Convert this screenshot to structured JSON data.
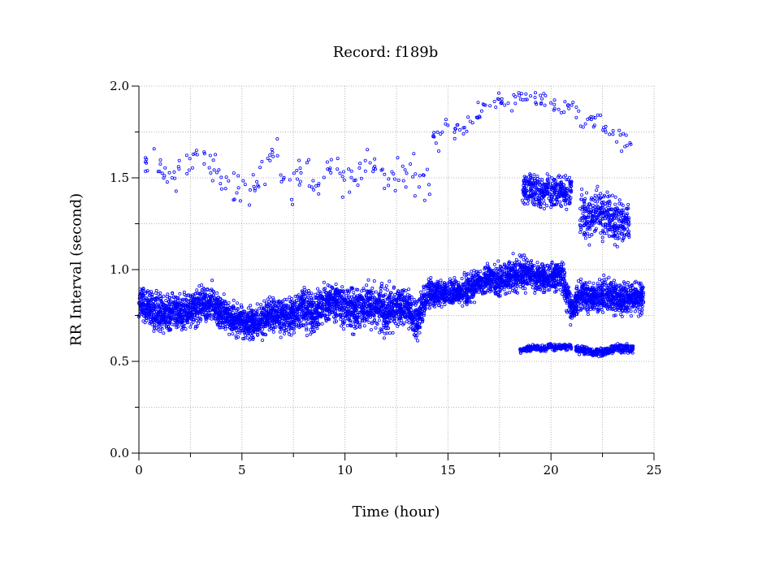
{
  "chart_data": {
    "type": "scatter",
    "title": "Record:  f189b",
    "xlabel": "Time (hour)",
    "ylabel": "RR Interval (second)",
    "xlim": [
      0,
      25
    ],
    "ylim": [
      0.0,
      2.0
    ],
    "x_ticks": [
      0,
      5,
      10,
      15,
      20,
      25
    ],
    "x_tick_labels": [
      "0",
      "5",
      "10",
      "15",
      "20",
      "25"
    ],
    "y_ticks": [
      0.0,
      0.5,
      1.0,
      1.5,
      2.0
    ],
    "y_tick_labels": [
      "0.0",
      "0.5",
      "1.0",
      "1.5",
      "2.0"
    ],
    "grid": true,
    "marker_color": "#0000ff",
    "series": [
      {
        "x": [
          0.0,
          0.5,
          1.0,
          1.5,
          2.0,
          2.5,
          3.0,
          3.5,
          4.0,
          4.5,
          5.0,
          5.5,
          6.0,
          6.5,
          7.0,
          7.5,
          8.0,
          8.5,
          9.0,
          9.5,
          10.0,
          10.5,
          11.0,
          11.5,
          12.0,
          12.5,
          13.0,
          13.5,
          14.0,
          14.5,
          15.0,
          15.5,
          16.0,
          16.5,
          17.0,
          17.5,
          18.0,
          18.5,
          19.0,
          19.5,
          20.0,
          20.5,
          21.0,
          21.5,
          22.0,
          22.5,
          23.0,
          23.5,
          24.0
        ],
        "y": [
          0.82,
          0.78,
          0.77,
          0.76,
          0.77,
          0.78,
          0.8,
          0.83,
          0.76,
          0.73,
          0.72,
          0.71,
          0.72,
          0.76,
          0.74,
          0.76,
          0.79,
          0.77,
          0.81,
          0.83,
          0.8,
          0.77,
          0.81,
          0.8,
          0.78,
          0.79,
          0.8,
          0.73,
          0.86,
          0.88,
          0.87,
          0.88,
          0.9,
          0.93,
          0.95,
          0.93,
          0.96,
          0.98,
          0.97,
          0.96,
          0.95,
          0.97,
          0.78,
          0.87,
          0.84,
          0.86,
          0.85,
          0.84,
          0.85
        ],
        "y_spread": [
          0.07,
          0.08,
          0.09,
          0.08,
          0.08,
          0.08,
          0.08,
          0.08,
          0.07,
          0.07,
          0.07,
          0.07,
          0.07,
          0.08,
          0.08,
          0.08,
          0.09,
          0.09,
          0.08,
          0.08,
          0.09,
          0.09,
          0.09,
          0.09,
          0.1,
          0.09,
          0.09,
          0.09,
          0.06,
          0.06,
          0.06,
          0.06,
          0.07,
          0.07,
          0.06,
          0.07,
          0.07,
          0.08,
          0.06,
          0.06,
          0.06,
          0.07,
          0.07,
          0.07,
          0.07,
          0.07,
          0.07,
          0.07,
          0.07
        ]
      },
      {
        "x": [
          0.2,
          0.7,
          1.2,
          1.7,
          2.2,
          2.7,
          3.2,
          3.7,
          4.2,
          4.7,
          5.2,
          5.7,
          6.2,
          6.7,
          7.2,
          7.7,
          8.2,
          8.7,
          9.2,
          9.7,
          10.2,
          10.7,
          11.2,
          11.7,
          12.2,
          12.7,
          13.2,
          13.7
        ],
        "y": [
          1.6,
          1.62,
          1.55,
          1.48,
          1.58,
          1.6,
          1.65,
          1.52,
          1.45,
          1.5,
          1.42,
          1.48,
          1.55,
          1.6,
          1.42,
          1.5,
          1.55,
          1.45,
          1.62,
          1.5,
          1.48,
          1.55,
          1.62,
          1.5,
          1.45,
          1.52,
          1.58,
          1.45
        ],
        "y_spread": [
          0.08,
          0.08,
          0.08,
          0.08,
          0.08,
          0.08,
          0.1,
          0.1,
          0.1,
          0.1,
          0.08,
          0.08,
          0.08,
          0.1,
          0.08,
          0.08,
          0.1,
          0.1,
          0.1,
          0.1,
          0.1,
          0.1,
          0.1,
          0.1,
          0.1,
          0.1,
          0.1,
          0.1
        ]
      },
      {
        "x": [
          14.0,
          14.5,
          15.0,
          15.5,
          16.0,
          16.5,
          17.0,
          17.5,
          18.0,
          18.5,
          19.0,
          19.5,
          20.0,
          20.5,
          21.0,
          21.5,
          22.0,
          22.5,
          23.0,
          23.5
        ],
        "y": [
          1.75,
          1.72,
          1.78,
          1.75,
          1.8,
          1.85,
          1.9,
          1.92,
          1.9,
          1.95,
          1.95,
          1.92,
          1.9,
          1.88,
          1.9,
          1.8,
          1.82,
          1.8,
          1.75,
          1.7
        ],
        "y_spread": [
          0.05,
          0.05,
          0.05,
          0.05,
          0.05,
          0.05,
          0.05,
          0.05,
          0.05,
          0.04,
          0.04,
          0.04,
          0.04,
          0.04,
          0.04,
          0.05,
          0.05,
          0.05,
          0.05,
          0.05
        ]
      },
      {
        "x": [
          18.6,
          19.0,
          19.4,
          19.8,
          20.2,
          20.6
        ],
        "y": [
          1.42,
          1.45,
          1.4,
          1.43,
          1.42,
          1.43
        ],
        "y_spread": [
          0.07,
          0.07,
          0.07,
          0.07,
          0.07,
          0.07
        ]
      },
      {
        "x": [
          21.4,
          21.8,
          22.2,
          22.6,
          23.0,
          23.4
        ],
        "y": [
          1.3,
          1.28,
          1.32,
          1.3,
          1.27,
          1.25
        ],
        "y_spread": [
          0.1,
          0.1,
          0.1,
          0.1,
          0.1,
          0.1
        ]
      },
      {
        "x": [
          18.5,
          19.0,
          19.5,
          20.0,
          20.5
        ],
        "y": [
          0.56,
          0.57,
          0.57,
          0.58,
          0.58
        ],
        "y_spread": [
          0.015,
          0.015,
          0.015,
          0.015,
          0.015
        ]
      },
      {
        "x": [
          21.2,
          21.6,
          22.0,
          22.4,
          22.8,
          23.2,
          23.6
        ],
        "y": [
          0.57,
          0.56,
          0.55,
          0.55,
          0.56,
          0.57,
          0.57
        ],
        "y_spread": [
          0.02,
          0.02,
          0.02,
          0.02,
          0.02,
          0.02,
          0.02
        ]
      }
    ]
  }
}
